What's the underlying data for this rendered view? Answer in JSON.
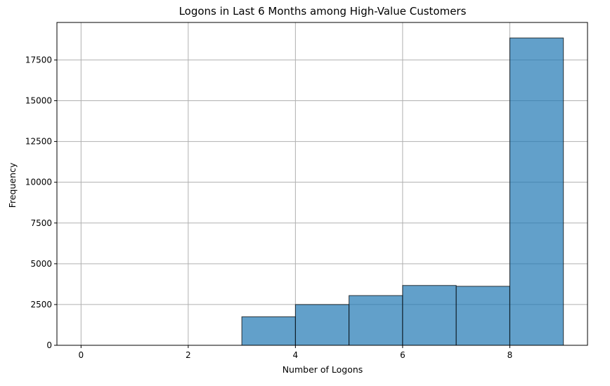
{
  "chart_data": {
    "type": "bar",
    "title": "Logons in Last 6 Months among High-Value Customers",
    "xlabel": "Number of Logons",
    "ylabel": "Frequency",
    "xlim": [
      -0.45,
      9.45
    ],
    "ylim": [
      0,
      19800
    ],
    "xticks": [
      0,
      2,
      4,
      6,
      8
    ],
    "yticks": [
      0,
      2500,
      5000,
      7500,
      10000,
      12500,
      15000,
      17500
    ],
    "grid": true,
    "bins": [
      {
        "start": 0,
        "end": 1,
        "value": 0
      },
      {
        "start": 1,
        "end": 2,
        "value": 0
      },
      {
        "start": 2,
        "end": 3,
        "value": 0
      },
      {
        "start": 3,
        "end": 4,
        "value": 1750
      },
      {
        "start": 4,
        "end": 5,
        "value": 2500
      },
      {
        "start": 5,
        "end": 6,
        "value": 3050
      },
      {
        "start": 6,
        "end": 7,
        "value": 3670
      },
      {
        "start": 7,
        "end": 8,
        "value": 3620
      },
      {
        "start": 8,
        "end": 9,
        "value": 18850
      }
    ],
    "colors": {
      "bar_fill": "#1f77b4",
      "bar_edge": "#000000",
      "grid": "#b0b0b0"
    }
  }
}
